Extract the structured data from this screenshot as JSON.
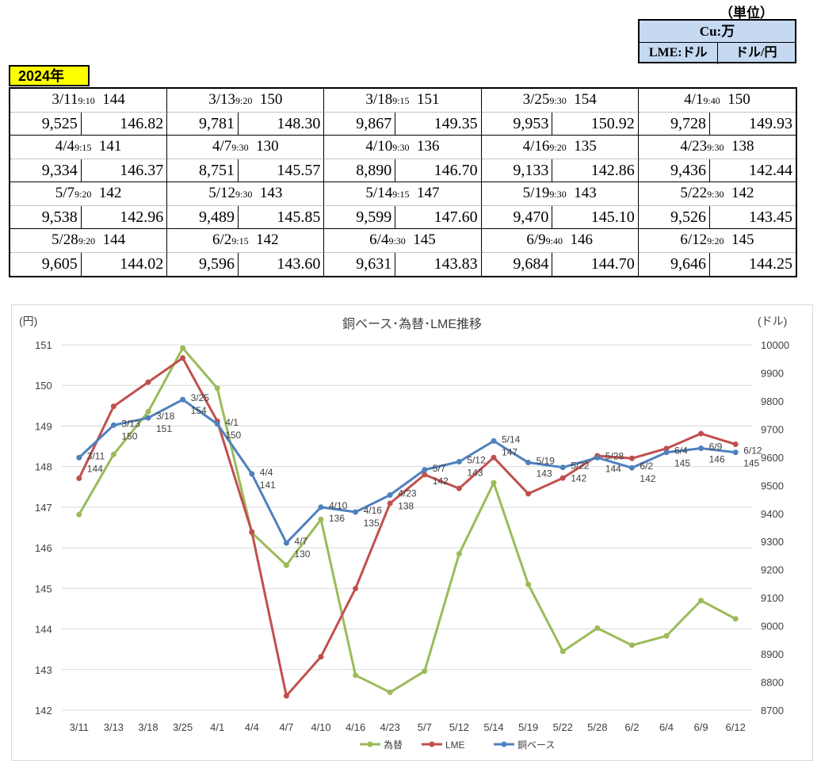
{
  "unit": {
    "title": "（単位）",
    "cu": "Cu:万",
    "lme": "LME:ドル",
    "fx": "ドル/円"
  },
  "year": "2024年",
  "table": [
    {
      "date": "3/11",
      "time": "9:10",
      "cu": "144",
      "lme": "9,525",
      "fx": "146.82"
    },
    {
      "date": "3/13",
      "time": "9:20",
      "cu": "150",
      "lme": "9,781",
      "fx": "148.30"
    },
    {
      "date": "3/18",
      "time": "9:15",
      "cu": "151",
      "lme": "9,867",
      "fx": "149.35"
    },
    {
      "date": "3/25",
      "time": "9:30",
      "cu": "154",
      "lme": "9,953",
      "fx": "150.92"
    },
    {
      "date": "4/1",
      "time": "9:40",
      "cu": "150",
      "lme": "9,728",
      "fx": "149.93"
    },
    {
      "date": "4/4",
      "time": "9:15",
      "cu": "141",
      "lme": "9,334",
      "fx": "146.37"
    },
    {
      "date": "4/7",
      "time": "9:30",
      "cu": "130",
      "lme": "8,751",
      "fx": "145.57"
    },
    {
      "date": "4/10",
      "time": "9:30",
      "cu": "136",
      "lme": "8,890",
      "fx": "146.70"
    },
    {
      "date": "4/16",
      "time": "9:20",
      "cu": "135",
      "lme": "9,133",
      "fx": "142.86"
    },
    {
      "date": "4/23",
      "time": "9:30",
      "cu": "138",
      "lme": "9,436",
      "fx": "142.44"
    },
    {
      "date": "5/7",
      "time": "9:20",
      "cu": "142",
      "lme": "9,538",
      "fx": "142.96"
    },
    {
      "date": "5/12",
      "time": "9:30",
      "cu": "143",
      "lme": "9,489",
      "fx": "145.85"
    },
    {
      "date": "5/14",
      "time": "9:15",
      "cu": "147",
      "lme": "9,599",
      "fx": "147.60"
    },
    {
      "date": "5/19",
      "time": "9:30",
      "cu": "143",
      "lme": "9,470",
      "fx": "145.10"
    },
    {
      "date": "5/22",
      "time": "9:30",
      "cu": "142",
      "lme": "9,526",
      "fx": "143.45"
    },
    {
      "date": "5/28",
      "time": "9:20",
      "cu": "144",
      "lme": "9,605",
      "fx": "144.02"
    },
    {
      "date": "6/2",
      "time": "9:15",
      "cu": "142",
      "lme": "9,596",
      "fx": "143.60"
    },
    {
      "date": "6/4",
      "time": "9:30",
      "cu": "145",
      "lme": "9,631",
      "fx": "143.83"
    },
    {
      "date": "6/9",
      "time": "9:40",
      "cu": "146",
      "lme": "9,684",
      "fx": "144.70"
    },
    {
      "date": "6/12",
      "time": "9:20",
      "cu": "145",
      "lme": "9,646",
      "fx": "144.25"
    }
  ],
  "chart_data": {
    "type": "line",
    "title": "銅ベース･為替･LME推移",
    "ylabel_left": "(円)",
    "ylabel_right": "(ドル)",
    "categories": [
      "3/11",
      "3/13",
      "3/18",
      "3/25",
      "4/1",
      "4/4",
      "4/7",
      "4/10",
      "4/16",
      "4/23",
      "5/7",
      "5/12",
      "5/14",
      "5/19",
      "5/22",
      "5/28",
      "6/2",
      "6/4",
      "6/9",
      "6/12"
    ],
    "ylim_left": [
      142,
      151
    ],
    "yticks_left": [
      142,
      143,
      144,
      145,
      146,
      147,
      148,
      149,
      150,
      151
    ],
    "ylim_right": [
      8700,
      10000
    ],
    "yticks_right": [
      8700,
      8800,
      8900,
      9000,
      9100,
      9200,
      9300,
      9400,
      9500,
      9600,
      9700,
      9800,
      9900,
      10000
    ],
    "grid": true,
    "legend_position": "bottom",
    "series": [
      {
        "name": "為替",
        "axis": "left",
        "color": "#9bbb59",
        "values": [
          146.82,
          148.3,
          149.35,
          150.92,
          149.93,
          146.37,
          145.57,
          146.7,
          142.86,
          142.44,
          142.96,
          145.85,
          147.6,
          145.1,
          143.45,
          144.02,
          143.6,
          143.83,
          144.7,
          144.25
        ]
      },
      {
        "name": "LME",
        "axis": "right",
        "color": "#c0504d",
        "values": [
          9525,
          9781,
          9867,
          9953,
          9728,
          9334,
          8751,
          8890,
          9133,
          9436,
          9538,
          9489,
          9599,
          9470,
          9526,
          9605,
          9596,
          9631,
          9684,
          9646
        ]
      },
      {
        "name": "銅ベース",
        "axis": "left",
        "color": "#4f81bd",
        "values": [
          148.22,
          149.02,
          149.2,
          149.65,
          149.05,
          147.82,
          146.12,
          147.0,
          146.88,
          147.3,
          147.92,
          148.12,
          148.63,
          148.1,
          147.98,
          148.22,
          147.97,
          148.35,
          148.45,
          148.35
        ]
      }
    ],
    "annotations": [
      {
        "index": 0,
        "date": "3/11",
        "value": "144"
      },
      {
        "index": 1,
        "date": "3/13",
        "value": "150"
      },
      {
        "index": 2,
        "date": "3/18",
        "value": "151"
      },
      {
        "index": 3,
        "date": "3/25",
        "value": "154"
      },
      {
        "index": 4,
        "date": "4/1",
        "value": "150"
      },
      {
        "index": 5,
        "date": "4/4",
        "value": "141"
      },
      {
        "index": 6,
        "date": "4/7",
        "value": "130"
      },
      {
        "index": 7,
        "date": "4/10",
        "value": "136"
      },
      {
        "index": 8,
        "date": "4/16",
        "value": "135"
      },
      {
        "index": 9,
        "date": "4/23",
        "value": "138"
      },
      {
        "index": 10,
        "date": "5/7",
        "value": "142"
      },
      {
        "index": 11,
        "date": "5/12",
        "value": "143"
      },
      {
        "index": 12,
        "date": "5/14",
        "value": "147"
      },
      {
        "index": 13,
        "date": "5/19",
        "value": "143"
      },
      {
        "index": 14,
        "date": "5/22",
        "value": "142"
      },
      {
        "index": 15,
        "date": "5/28",
        "value": "144"
      },
      {
        "index": 16,
        "date": "6/2",
        "value": "142"
      },
      {
        "index": 17,
        "date": "6/4",
        "value": "145"
      },
      {
        "index": 18,
        "date": "6/9",
        "value": "146"
      },
      {
        "index": 19,
        "date": "6/12",
        "value": "145"
      }
    ]
  }
}
